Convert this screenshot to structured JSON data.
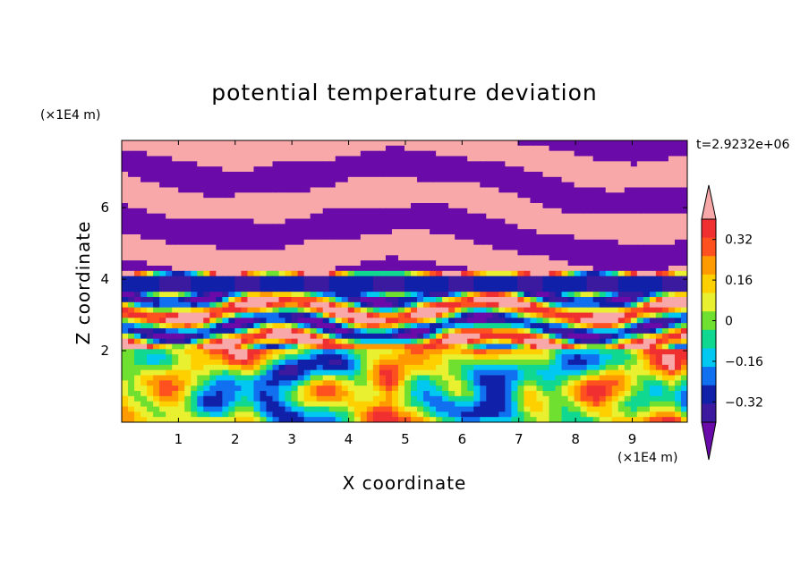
{
  "chart_data": {
    "type": "heatmap",
    "title": "potential temperature deviation",
    "xlabel": "X coordinate",
    "ylabel": "Z coordinate",
    "x_unit": "(×1E4 m)",
    "y_unit": "(×1E4 m)",
    "time_label": "t=2.9232e+06",
    "xlim": [
      0,
      9.97
    ],
    "ylim": [
      0,
      7.88
    ],
    "xticks": [
      1,
      2,
      3,
      4,
      5,
      6,
      7,
      8,
      9
    ],
    "yticks": [
      2,
      4,
      6
    ],
    "colorbar": {
      "levels": [
        -0.48,
        -0.4,
        -0.32,
        -0.24,
        -0.16,
        -0.08,
        0,
        0.08,
        0.16,
        0.24,
        0.32,
        0.4,
        0.48
      ],
      "tick_labels": [
        "0.32",
        "0.16",
        "0",
        "−0.16",
        "−0.32"
      ],
      "tick_values": [
        0.32,
        0.16,
        0,
        -0.16,
        -0.32
      ],
      "colors": [
        "#6a0aa8",
        "#3c1aa0",
        "#1020a8",
        "#1070f0",
        "#00c8f0",
        "#10d890",
        "#70e030",
        "#e8f030",
        "#ffd000",
        "#ff9a00",
        "#ff5020",
        "#f03030",
        "#f8a8a8"
      ],
      "extend": "both"
    },
    "grid": false,
    "legend": "colorbar-right"
  }
}
